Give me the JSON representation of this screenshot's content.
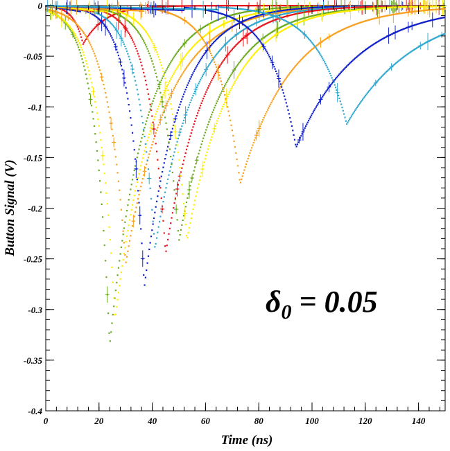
{
  "chart_data": {
    "type": "line",
    "title": "",
    "xlabel": "Time (ns)",
    "ylabel": "Button Signal (V)",
    "xlim": [
      0,
      150
    ],
    "ylim": [
      -0.4,
      0
    ],
    "x_ticks": [
      "0",
      "20",
      "40",
      "60",
      "80",
      "100",
      "120",
      "140"
    ],
    "x_tick_values": [
      0,
      20,
      40,
      60,
      80,
      100,
      120,
      140
    ],
    "y_ticks": [
      "0",
      "-0.05",
      "-0.1",
      "-0.15",
      "-0.2",
      "-0.25",
      "-0.3",
      "-0.35",
      "-0.4"
    ],
    "y_tick_values": [
      0,
      -0.05,
      -0.1,
      -0.15,
      -0.2,
      -0.25,
      -0.3,
      -0.35,
      -0.4
    ],
    "annotation": {
      "symbol": "δ",
      "subscript": "0",
      "text": " = 0.05"
    },
    "grid": false,
    "legend": "none",
    "series": [
      {
        "color": "#e8141c",
        "t_peak": 14,
        "amplitude": -0.038,
        "width": 2.5
      },
      {
        "color": "#6aaa1e",
        "t_peak": 24,
        "amplitude": -0.335,
        "width": 4
      },
      {
        "color": "#ffee00",
        "t_peak": 26,
        "amplitude": -0.31,
        "width": 4.5
      },
      {
        "color": "#f8a020",
        "t_peak": 30,
        "amplitude": -0.255,
        "width": 5
      },
      {
        "color": "#1020c8",
        "t_peak": 37,
        "amplitude": -0.278,
        "width": 4
      },
      {
        "color": "#30a8d0",
        "t_peak": 41,
        "amplitude": -0.24,
        "width": 4.5
      },
      {
        "color": "#e8141c",
        "t_peak": 45,
        "amplitude": -0.245,
        "width": 4.5
      },
      {
        "color": "#6aaa1e",
        "t_peak": 50,
        "amplitude": -0.232,
        "width": 5
      },
      {
        "color": "#ffee00",
        "t_peak": 53,
        "amplitude": -0.232,
        "width": 5
      },
      {
        "color": "#f8a020",
        "t_peak": 73,
        "amplitude": -0.176,
        "width": 6
      },
      {
        "color": "#1020c8",
        "t_peak": 94,
        "amplitude": -0.14,
        "width": 7
      },
      {
        "color": "#30a8d0",
        "t_peak": 113,
        "amplitude": -0.117,
        "width": 8
      }
    ]
  }
}
